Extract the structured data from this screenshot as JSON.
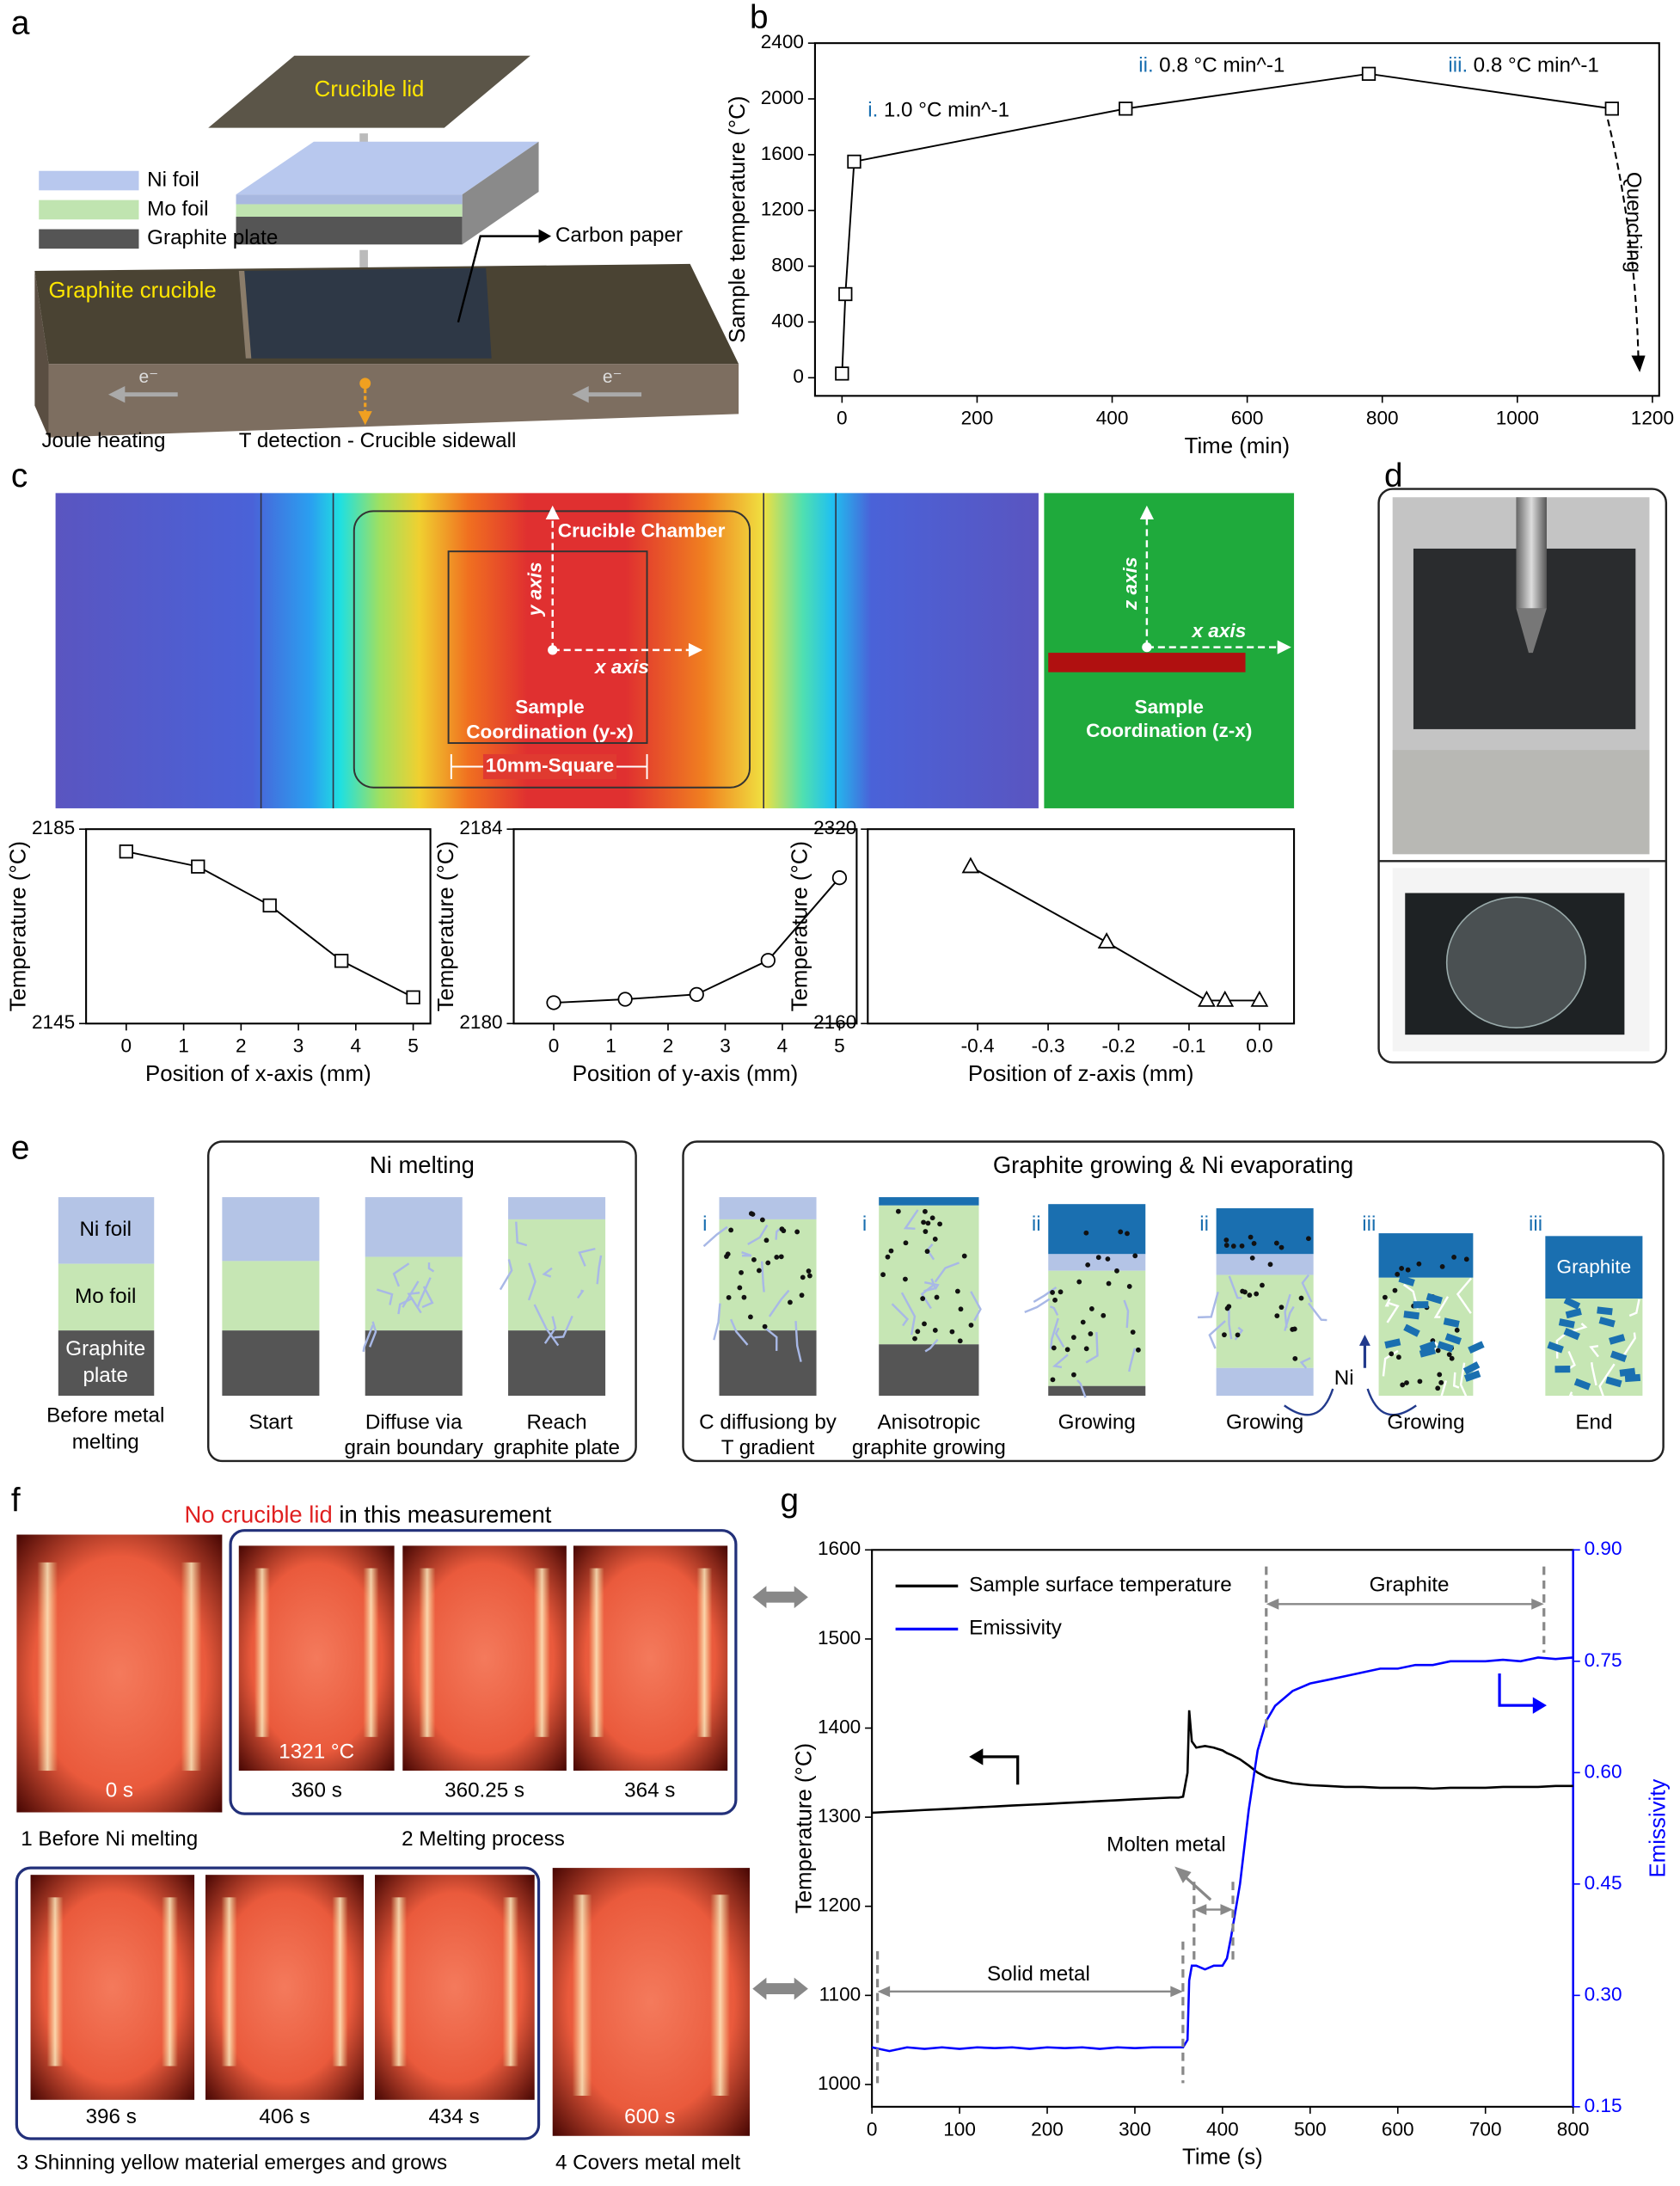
{
  "panel_labels": [
    "a",
    "b",
    "c",
    "d",
    "e",
    "f",
    "g"
  ],
  "panel_a": {
    "lid": "Crucible lid",
    "legend": [
      "Ni foil",
      "Mo foil",
      "Graphite plate"
    ],
    "carbon_paper": "Carbon paper",
    "crucible": "Graphite crucible",
    "electrons": [
      "e⁻",
      "e⁻"
    ],
    "joule": "Joule heating",
    "t_detection": "T detection - Crucible sidewall"
  },
  "panel_c": {
    "chamber": "Crucible Chamber",
    "y_axis": "y axis",
    "x_axis": "x axis",
    "sample_yx": [
      "Sample",
      "Coordination (y-x)"
    ],
    "square": "10mm-Square",
    "z_axis": "z axis",
    "x_axis_2": "x axis",
    "sample_zx": [
      "Sample",
      "Coordination (z-x)"
    ]
  },
  "panel_e": {
    "stack_labels": [
      "Ni foil",
      "Mo foil"
    ],
    "graphite_plate": [
      "Graphite",
      "plate"
    ],
    "before": [
      "Before metal",
      "melting"
    ],
    "ni_melting": {
      "title": "Ni melting",
      "steps": [
        [
          "Start"
        ],
        [
          "Diffuse via",
          "grain boundary"
        ],
        [
          "Reach",
          "graphite plate"
        ]
      ]
    },
    "growing": {
      "title": "Graphite growing & Ni evaporating",
      "stages": [
        "i",
        "i",
        "ii",
        "ii",
        "iii",
        "iii"
      ],
      "steps": [
        [
          "C diffusiong by",
          "T gradient"
        ],
        [
          "Anisotropic",
          "graphite growing"
        ],
        [
          "Growing"
        ],
        [
          "Growing"
        ],
        [
          "Growing"
        ],
        [
          "End"
        ]
      ],
      "ni": "Ni",
      "graphite": "Graphite"
    }
  },
  "panel_f": {
    "title": [
      "No crucible lid",
      "in this measurement"
    ],
    "frames": [
      "0 s",
      "360 s",
      "360.25 s",
      "364 s",
      "396 s",
      "406 s",
      "434 s",
      "600 s"
    ],
    "temperature": "1321 °C",
    "captions": [
      "1 Before Ni melting",
      "2 Melting process",
      "3 Shinning yellow material emerges and grows",
      "4 Covers metal melt"
    ]
  },
  "chart_data": [
    {
      "type": "line",
      "x_label": "Time (min)",
      "y_label": "Sample temperature (°C)",
      "marker": "square",
      "color": "#000000",
      "x": [
        0,
        5,
        18,
        420,
        780,
        1140
      ],
      "values": [
        30,
        600,
        1550,
        1930,
        2180,
        1930
      ],
      "xlim": [
        -40,
        1210
      ],
      "xticks": [
        0,
        200,
        400,
        600,
        800,
        1000,
        1200
      ],
      "ylim": [
        -130,
        2400
      ],
      "yticks": [
        0,
        400,
        800,
        1200,
        1600,
        2000,
        2400
      ],
      "annotations": [
        [
          "i.",
          "1.0 °C min^-1"
        ],
        [
          "ii.",
          "0.8 °C min^-1"
        ],
        [
          "iii.",
          "0.8 °C min^-1"
        ]
      ],
      "note": "Quenching"
    },
    {
      "type": "line",
      "x_label": "Position of x-axis (mm)",
      "y_label": "Temperature (°C)",
      "marker": "square",
      "color": "#000000",
      "x": [
        0,
        1.25,
        2.5,
        3.75,
        5
      ],
      "values": [
        2180.4,
        2177.3,
        2169.3,
        2157.9,
        2150.4
      ],
      "xlim": [
        -0.7,
        5.3
      ],
      "xticks": [
        0,
        1,
        2,
        3,
        4,
        5
      ],
      "ylim": [
        2145,
        2185
      ],
      "yticks": [
        2145,
        2185
      ]
    },
    {
      "type": "line",
      "x_label": "Position of y-axis (mm)",
      "y_label": "Temperature (°C)",
      "marker": "circle",
      "color": "#000000",
      "x": [
        0,
        1.25,
        2.5,
        3.75,
        5
      ],
      "values": [
        2180.43,
        2180.5,
        2180.6,
        2181.3,
        2183.0
      ],
      "xlim": [
        -0.7,
        5.3
      ],
      "xticks": [
        0,
        1,
        2,
        3,
        4,
        5
      ],
      "ylim": [
        2180,
        2184
      ],
      "yticks": [
        2180,
        2184
      ]
    },
    {
      "type": "line",
      "x_label": "Position of z-axis (mm)",
      "y_label": "Temperature (°C)",
      "marker": "triangle",
      "color": "#000000",
      "x": [
        -0.41,
        -0.217,
        -0.075,
        -0.049,
        0
      ],
      "values": [
        2289,
        2227,
        2179,
        2179,
        2179
      ],
      "xlim": [
        -0.556,
        0.049
      ],
      "xticks": [
        -0.4,
        -0.3,
        -0.2,
        -0.1,
        {
          "value": 0,
          "label": "0.0"
        }
      ],
      "ylim": [
        2160,
        2320
      ],
      "yticks": [
        2160,
        2320
      ]
    },
    {
      "type": "line",
      "x_label": "Time (s)",
      "y_label": "Temperature (°C)",
      "y2_label": "Emissivity",
      "x": [
        0,
        20,
        40,
        60,
        80,
        100,
        120,
        140,
        160,
        180,
        200,
        220,
        240,
        260,
        280,
        300,
        320,
        340,
        350,
        355,
        360,
        362,
        365,
        370,
        380,
        390,
        400,
        405,
        410,
        420,
        430,
        440,
        450,
        460,
        480,
        500,
        520,
        540,
        560,
        580,
        600,
        620,
        640,
        660,
        680,
        700,
        720,
        740,
        760,
        780,
        800
      ],
      "series": [
        {
          "name": "Sample surface temperature",
          "color": "#000000",
          "values": [
            1305,
            1306,
            1307,
            1308,
            1309,
            1310,
            1311,
            1312,
            1313,
            1314,
            1315,
            1316,
            1317,
            1318,
            1319,
            1320,
            1321,
            1322,
            1322,
            1323,
            1350,
            1420,
            1385,
            1378,
            1380,
            1378,
            1375,
            1372,
            1370,
            1365,
            1358,
            1350,
            1345,
            1342,
            1338,
            1336,
            1335,
            1334,
            1334,
            1333,
            1333,
            1333,
            1332,
            1333,
            1333,
            1333,
            1334,
            1334,
            1334,
            1335,
            1335
          ]
        },
        {
          "name": "Emissivity",
          "color": "#0000ff",
          "axis": "y2",
          "values": [
            0.23,
            0.225,
            0.23,
            0.228,
            0.23,
            0.228,
            0.23,
            0.229,
            0.23,
            0.228,
            0.23,
            0.229,
            0.23,
            0.228,
            0.23,
            0.229,
            0.23,
            0.23,
            0.23,
            0.23,
            0.24,
            0.32,
            0.34,
            0.34,
            0.335,
            0.34,
            0.34,
            0.35,
            0.38,
            0.45,
            0.55,
            0.63,
            0.67,
            0.69,
            0.71,
            0.72,
            0.725,
            0.73,
            0.735,
            0.74,
            0.74,
            0.745,
            0.745,
            0.75,
            0.75,
            0.75,
            0.752,
            0.75,
            0.755,
            0.753,
            0.755
          ]
        }
      ],
      "xlim": [
        0,
        800
      ],
      "xticks": [
        0,
        100,
        200,
        300,
        400,
        500,
        600,
        700,
        800
      ],
      "ylim": [
        975,
        1600
      ],
      "yticks": [
        1000,
        1100,
        1200,
        1300,
        1400,
        1500,
        1600
      ],
      "y2lim": [
        0.15,
        0.9
      ],
      "y2ticks": [
        0.15,
        {
          "value": 0.3,
          "label": "0.30"
        },
        0.45,
        {
          "value": 0.6,
          "label": "0.60"
        },
        0.75,
        {
          "value": 0.9,
          "label": "0.90"
        }
      ],
      "annotations": {
        "graphite": "Graphite",
        "molten": "Molten metal",
        "solid": "Solid metal"
      }
    }
  ]
}
